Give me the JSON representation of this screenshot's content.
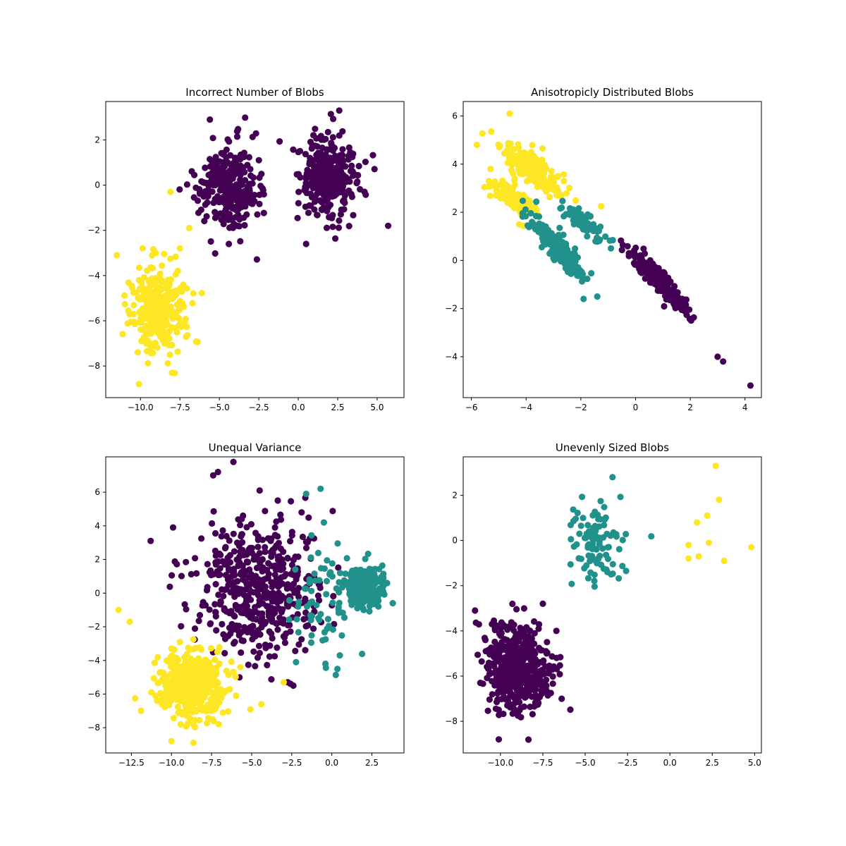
{
  "colors": {
    "purple": "#440154",
    "teal": "#21918c",
    "yellow": "#fde725",
    "axes": "#000000",
    "background": "#ffffff"
  },
  "chart_data": [
    {
      "type": "scatter",
      "title": "Incorrect Number of Blobs",
      "xlabel": "",
      "ylabel": "",
      "xlim": [
        -12.2,
        6.7
      ],
      "ylim": [
        -9.4,
        3.7
      ],
      "xticks": [
        -10.0,
        -7.5,
        -5.0,
        -2.5,
        0.0,
        2.5,
        5.0
      ],
      "yticks": [
        -8,
        -6,
        -4,
        -2,
        0,
        2
      ],
      "grid": false,
      "legend": "none",
      "clusters": [
        {
          "label": 0,
          "color": "#440154",
          "center": [
            -4.3,
            -0.1
          ],
          "spread": [
            0.95,
            0.9
          ],
          "n": 300
        },
        {
          "label": 0,
          "color": "#440154",
          "center": [
            1.9,
            0.4
          ],
          "spread": [
            0.95,
            0.9
          ],
          "n": 300
        },
        {
          "label": 1,
          "color": "#fde725",
          "center": [
            -8.9,
            -5.6
          ],
          "spread": [
            0.9,
            0.95
          ],
          "n": 330
        }
      ],
      "points": [
        {
          "x": -11.5,
          "y": -3.1,
          "color": "#fde725"
        },
        {
          "x": -10.1,
          "y": -8.8,
          "color": "#fde725"
        },
        {
          "x": -7.5,
          "y": -2.8,
          "color": "#fde725"
        },
        {
          "x": -8.0,
          "y": -8.3,
          "color": "#fde725"
        },
        {
          "x": -8.1,
          "y": -0.3,
          "color": "#fde725"
        },
        {
          "x": -6.9,
          "y": -1.9,
          "color": "#fde725"
        },
        {
          "x": -4.4,
          "y": -2.6,
          "color": "#440154"
        },
        {
          "x": 5.7,
          "y": -1.8,
          "color": "#440154"
        },
        {
          "x": 2.6,
          "y": 3.3,
          "color": "#440154"
        },
        {
          "x": 0.5,
          "y": -2.6,
          "color": "#440154"
        },
        {
          "x": -5.6,
          "y": 2.9,
          "color": "#440154"
        }
      ]
    },
    {
      "type": "scatter",
      "title": "Anisotropicly Distributed Blobs",
      "xlabel": "",
      "ylabel": "",
      "xlim": [
        -6.3,
        4.6
      ],
      "ylim": [
        -5.7,
        6.6
      ],
      "xticks": [
        -6,
        -4,
        -2,
        0,
        2,
        4
      ],
      "yticks": [
        -4,
        -2,
        0,
        2,
        4,
        6
      ],
      "grid": false,
      "legend": "none",
      "clusters": [
        {
          "label": 2,
          "color": "#fde725",
          "center": [
            -3.7,
            3.8
          ],
          "dir": [
            1,
            -0.95
          ],
          "along": 0.75,
          "across": 0.22,
          "n": 220
        },
        {
          "label": 2,
          "color": "#fde725",
          "center": [
            -4.4,
            2.5
          ],
          "dir": [
            1,
            -0.95
          ],
          "along": 0.55,
          "across": 0.2,
          "n": 110
        },
        {
          "label": 1,
          "color": "#21918c",
          "center": [
            -2.9,
            0.6
          ],
          "dir": [
            1,
            -1.35
          ],
          "along": 0.75,
          "across": 0.18,
          "n": 210
        },
        {
          "label": 1,
          "color": "#21918c",
          "center": [
            -1.9,
            1.6
          ],
          "dir": [
            1,
            -0.9
          ],
          "along": 0.5,
          "across": 0.18,
          "n": 70
        },
        {
          "label": 0,
          "color": "#440154",
          "center": [
            0.9,
            -0.9
          ],
          "dir": [
            1,
            -1.25
          ],
          "along": 0.8,
          "across": 0.14,
          "n": 330
        }
      ],
      "points": [
        {
          "x": 4.2,
          "y": -5.2,
          "color": "#440154"
        },
        {
          "x": 3.2,
          "y": -4.2,
          "color": "#440154"
        },
        {
          "x": 3.0,
          "y": -4.0,
          "color": "#440154"
        },
        {
          "x": -5.8,
          "y": 4.8,
          "color": "#fde725"
        },
        {
          "x": -5.3,
          "y": 3.8,
          "color": "#fde725"
        },
        {
          "x": -4.6,
          "y": 6.1,
          "color": "#fde725"
        },
        {
          "x": -1.4,
          "y": -1.5,
          "color": "#21918c"
        },
        {
          "x": -1.9,
          "y": -1.6,
          "color": "#21918c"
        },
        {
          "x": -0.9,
          "y": 0.5,
          "color": "#21918c"
        }
      ]
    },
    {
      "type": "scatter",
      "title": "Unequal Variance",
      "xlabel": "",
      "ylabel": "",
      "xlim": [
        -14.1,
        4.5
      ],
      "ylim": [
        -9.5,
        8.1
      ],
      "xticks": [
        -12.5,
        -10.0,
        -7.5,
        -5.0,
        -2.5,
        0.0,
        2.5
      ],
      "yticks": [
        -8,
        -6,
        -4,
        -2,
        0,
        2,
        4,
        6
      ],
      "grid": false,
      "legend": "none",
      "clusters": [
        {
          "label": 0,
          "color": "#440154",
          "center": [
            -4.6,
            0.2
          ],
          "spread": [
            2.0,
            2.1
          ],
          "n": 480
        },
        {
          "label": 1,
          "color": "#21918c",
          "center": [
            2.0,
            0.4
          ],
          "spread": [
            0.55,
            0.55
          ],
          "n": 330
        },
        {
          "label": 1,
          "color": "#21918c",
          "center": [
            -0.6,
            -0.3
          ],
          "spread": [
            0.95,
            1.7
          ],
          "n": 70
        },
        {
          "label": 2,
          "color": "#fde725",
          "center": [
            -8.7,
            -5.5
          ],
          "spread": [
            1.0,
            1.0
          ],
          "n": 450
        }
      ],
      "points": [
        {
          "x": -13.3,
          "y": -1.0,
          "color": "#fde725"
        },
        {
          "x": -12.6,
          "y": -1.7,
          "color": "#fde725"
        },
        {
          "x": -10.0,
          "y": -8.8,
          "color": "#fde725"
        },
        {
          "x": -4.4,
          "y": -6.6,
          "color": "#fde725"
        },
        {
          "x": -3.0,
          "y": -5.3,
          "color": "#fde725"
        },
        {
          "x": -7.1,
          "y": 7.2,
          "color": "#440154"
        },
        {
          "x": -7.4,
          "y": 7.0,
          "color": "#440154"
        },
        {
          "x": -11.3,
          "y": 3.1,
          "color": "#440154"
        },
        {
          "x": -9.9,
          "y": 3.9,
          "color": "#440154"
        },
        {
          "x": -4.5,
          "y": 6.1,
          "color": "#440154"
        },
        {
          "x": -2.4,
          "y": -5.5,
          "color": "#440154"
        },
        {
          "x": -0.7,
          "y": 6.2,
          "color": "#21918c"
        },
        {
          "x": -1.6,
          "y": 5.9,
          "color": "#21918c"
        },
        {
          "x": 3.8,
          "y": -0.6,
          "color": "#21918c"
        },
        {
          "x": -0.4,
          "y": -4.2,
          "color": "#21918c"
        },
        {
          "x": 0.5,
          "y": -3.7,
          "color": "#21918c"
        }
      ]
    },
    {
      "type": "scatter",
      "title": "Unevenly Sized Blobs",
      "xlabel": "",
      "ylabel": "",
      "xlim": [
        -12.2,
        5.4
      ],
      "ylim": [
        -9.4,
        3.7
      ],
      "xticks": [
        -10.0,
        -7.5,
        -5.0,
        -2.5,
        0.0,
        2.5,
        5.0
      ],
      "yticks": [
        -8,
        -6,
        -4,
        -2,
        0,
        2
      ],
      "grid": false,
      "legend": "none",
      "clusters": [
        {
          "label": 0,
          "color": "#440154",
          "center": [
            -8.9,
            -5.6
          ],
          "spread": [
            0.9,
            0.95
          ],
          "n": 500
        },
        {
          "label": 1,
          "color": "#21918c",
          "center": [
            -4.3,
            -0.1
          ],
          "spread": [
            0.9,
            0.9
          ],
          "n": 95
        }
      ],
      "points": [
        {
          "x": -11.5,
          "y": -3.1,
          "color": "#440154"
        },
        {
          "x": -10.1,
          "y": -8.8,
          "color": "#440154"
        },
        {
          "x": -7.5,
          "y": -2.8,
          "color": "#440154"
        },
        {
          "x": -6.7,
          "y": -4.0,
          "color": "#440154"
        },
        {
          "x": 2.7,
          "y": 3.3,
          "color": "#fde725"
        },
        {
          "x": 2.9,
          "y": 1.8,
          "color": "#fde725"
        },
        {
          "x": 2.2,
          "y": 1.1,
          "color": "#fde725"
        },
        {
          "x": 1.6,
          "y": 0.8,
          "color": "#fde725"
        },
        {
          "x": 4.8,
          "y": -0.3,
          "color": "#fde725"
        },
        {
          "x": 1.1,
          "y": -0.2,
          "color": "#fde725"
        },
        {
          "x": 2.3,
          "y": -0.1,
          "color": "#fde725"
        },
        {
          "x": 1.1,
          "y": -0.8,
          "color": "#fde725"
        },
        {
          "x": 1.7,
          "y": -0.7,
          "color": "#fde725"
        },
        {
          "x": 3.2,
          "y": -0.9,
          "color": "#fde725"
        }
      ]
    }
  ]
}
